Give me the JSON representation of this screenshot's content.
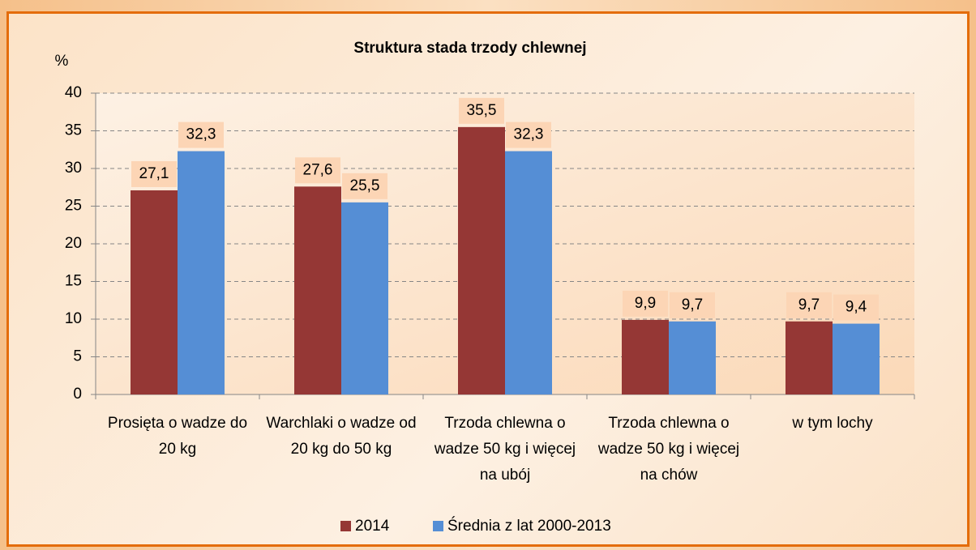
{
  "chart_data": {
    "type": "bar",
    "title": "Struktura stada trzody chlewnej",
    "y_label": "%",
    "categories": [
      "Prosięta o wadze do 20 kg",
      "Warchlaki o wadze od 20 kg do 50 kg",
      "Trzoda chlewna o wadze 50 kg i więcej na ubój",
      "Trzoda chlewna o wadze 50 kg i więcej na chów",
      "w tym lochy"
    ],
    "series": [
      {
        "name": "2014",
        "color": "#953735",
        "values": [
          27.1,
          27.6,
          35.5,
          9.9,
          9.7
        ],
        "value_labels": [
          "27,1",
          "27,6",
          "35,5",
          "9,9",
          "9,7"
        ]
      },
      {
        "name": "Średnia z lat 2000-2013",
        "color": "#558ed5",
        "values": [
          32.3,
          25.5,
          32.3,
          9.7,
          9.4
        ],
        "value_labels": [
          "32,3",
          "25,5",
          "32,3",
          "9,7",
          "9,4"
        ]
      }
    ],
    "ylim": [
      0,
      40
    ],
    "yticks": [
      0,
      5,
      10,
      15,
      20,
      25,
      30,
      35,
      40
    ],
    "grid": true,
    "legend": "bottom"
  }
}
